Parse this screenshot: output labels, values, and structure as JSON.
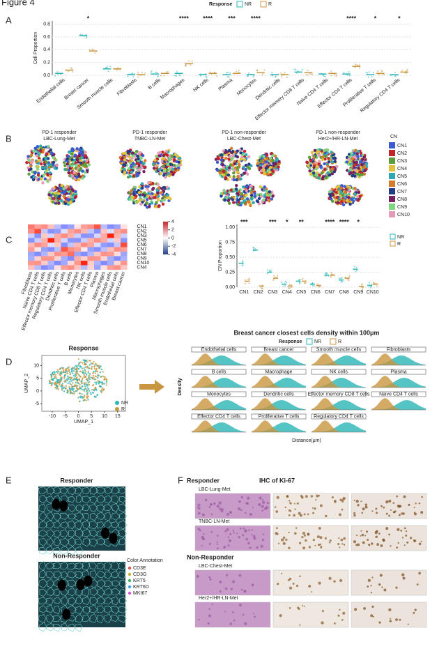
{
  "figure_title": "Figure 4",
  "panel_letters": [
    "A",
    "B",
    "C",
    "D",
    "E",
    "F"
  ],
  "response_legend": {
    "title": "Response",
    "items": [
      {
        "name": "NR",
        "color": "#2ab5b5"
      },
      {
        "name": "R",
        "color": "#c8963e"
      }
    ]
  },
  "chart_data": [
    {
      "type": "box",
      "y_label": "Cell Proportion",
      "categories": [
        "Endothelial cells",
        "Breast cancer",
        "Smooth muscle cells",
        "Fibroblasts",
        "B cells",
        "Macrophages",
        "NK cells",
        "Plasma",
        "Monocytes",
        "Dendritic cells",
        "Effector memory CD8 T cells",
        "Naive CD4 T cells",
        "Effector CD4 T cells",
        "Proliferative T cells",
        "Regulatory CD4 T cells"
      ],
      "significance": [
        null,
        "*",
        null,
        null,
        null,
        "****",
        "****",
        "***",
        "****",
        null,
        null,
        null,
        "****",
        "*",
        "*"
      ],
      "series": [
        {
          "name": "NR",
          "color": "#2ab5b5",
          "values": [
            0.03,
            0.62,
            0.1,
            0.01,
            0.02,
            0.03,
            0.01,
            0.01,
            0.01,
            0.01,
            0.05,
            0.02,
            0.02,
            0.01,
            0.01
          ]
        },
        {
          "name": "R",
          "color": "#c8963e",
          "values": [
            0.08,
            0.38,
            0.1,
            0.01,
            0.03,
            0.18,
            0.03,
            0.03,
            0.04,
            0.01,
            0.04,
            0.03,
            0.14,
            0.03,
            0.05
          ]
        }
      ],
      "ylim": [
        0,
        0.85
      ],
      "yticks": [
        {
          "value": 0,
          "label": "0.0"
        },
        0.2,
        0.4,
        0.6,
        0.8
      ],
      "grid": true
    },
    {
      "type": "box",
      "y_label": "CN Proportion",
      "categories": [
        "CN1",
        "CN2",
        "CN3",
        "CN4",
        "CN5",
        "CN6",
        "CN7",
        "CN8",
        "CN9",
        "CN10"
      ],
      "significance": [
        "***",
        null,
        "***",
        "*",
        "**",
        null,
        "****",
        "****",
        "*",
        null
      ],
      "series": [
        {
          "name": "NR",
          "color": "#2ab5b5",
          "values": [
            0.4,
            0.62,
            0.25,
            0.05,
            0.1,
            0.05,
            0.2,
            0.12,
            0.3,
            0.03
          ]
        },
        {
          "name": "R",
          "color": "#c8963e",
          "values": [
            0.1,
            0.02,
            0.15,
            0.02,
            0.1,
            0.03,
            0.2,
            0.15,
            0.01,
            0.05
          ]
        }
      ],
      "ylim": [
        0,
        1.05
      ],
      "yticks": [
        {
          "value": 0,
          "label": "0.00"
        },
        {
          "value": 0.25,
          "label": "0.25"
        },
        {
          "value": 0.5,
          "label": "0.50"
        },
        {
          "value": 0.75,
          "label": "0.75"
        },
        {
          "value": 1,
          "label": "1.00"
        }
      ],
      "grid": true
    }
  ],
  "panel_b": {
    "titles": [
      [
        "PD-1 responder",
        "LBC-Lung-Met"
      ],
      [
        "PD-1 responder",
        "TNBC-LN-Met"
      ],
      [
        "PD-1 non-responder",
        "LBC-Chest-Met"
      ],
      [
        "PD-1 non-responder",
        "Her2+/HR-LN-Met"
      ]
    ],
    "legend_title": "CN",
    "legend": [
      {
        "name": "CN1",
        "color": "#3b5bd6"
      },
      {
        "name": "CN2",
        "color": "#c4242b"
      },
      {
        "name": "CN3",
        "color": "#5e9e3a"
      },
      {
        "name": "CN4",
        "color": "#e0c33a"
      },
      {
        "name": "CN5",
        "color": "#2ea9b5"
      },
      {
        "name": "CN6",
        "color": "#d77b2a"
      },
      {
        "name": "CN7",
        "color": "#1f3d8a"
      },
      {
        "name": "CN8",
        "color": "#7a1f5e"
      },
      {
        "name": "CN9",
        "color": "#7fd67f"
      },
      {
        "name": "CN10",
        "color": "#e79ab8"
      }
    ]
  },
  "panel_c_heatmap": {
    "columns": [
      "Fibroblasts",
      "Naive CD4 T cells",
      "Effector memory CD8 T cells",
      "Regulatory CD4 T cells",
      "Dendritic cells",
      "Proliferative T cells",
      "B cells",
      "Monocytes",
      "NK cells",
      "Effector CD4 T cells",
      "Plasma",
      "Macrophages",
      "Smooth muscle cells",
      "Endothelial cells",
      "Breast cancer"
    ],
    "rows": [
      "CN1",
      "CN2",
      "CN3",
      "CN5",
      "CN6",
      "CN7",
      "CN8",
      "CN9",
      "CN10",
      "CN4"
    ],
    "colorbar_ticks": [
      4,
      2,
      0,
      -2,
      -4
    ]
  },
  "panel_d": {
    "umap_title": "Response",
    "umap_x_label": "UMAP_1",
    "umap_y_label": "UMAP_2",
    "umap_xticks": [
      -10,
      -5,
      0,
      5,
      10,
      15
    ],
    "umap_yticks": [
      10,
      5,
      0,
      -5
    ],
    "density_title": "Breast cancer closest cells density within 100μm",
    "density_y_label": "Density",
    "density_x_label": "Distance(μm)",
    "facets": [
      "Endothelial cells",
      "Breast cancer",
      "Smooth muscle cells",
      "Fibroblasts",
      "B cells",
      "Macrophage",
      "NK cells",
      "Plasma",
      "Monocytes",
      "Dendritic cells",
      "Effector memory CD8 T cells",
      "Naive CD4 T cells",
      "Effector CD4 T cells",
      "Proliferative T cells",
      "Regulatory CD4 T cells"
    ]
  },
  "panel_e": {
    "responder": "Responder",
    "non_responder": "Non-Responder",
    "annotation_title": "Color Annotation",
    "annotation": [
      {
        "name": "CD3E",
        "color": "#e05050"
      },
      {
        "name": "CD3G",
        "color": "#c8b030"
      },
      {
        "name": "KRT5",
        "color": "#40b060"
      },
      {
        "name": "KRT6D",
        "color": "#40a0e0"
      },
      {
        "name": "MKI67",
        "color": "#d060d0"
      }
    ]
  },
  "panel_f": {
    "responder": "Responder",
    "title": "IHC of Ki-67",
    "non_responder": "Non-Responder",
    "rows": [
      "LBC-Lung-Met",
      "TNBC-LN-Met",
      "LBC-Chest-Met",
      "Her2+/HR-LN-Met"
    ]
  }
}
